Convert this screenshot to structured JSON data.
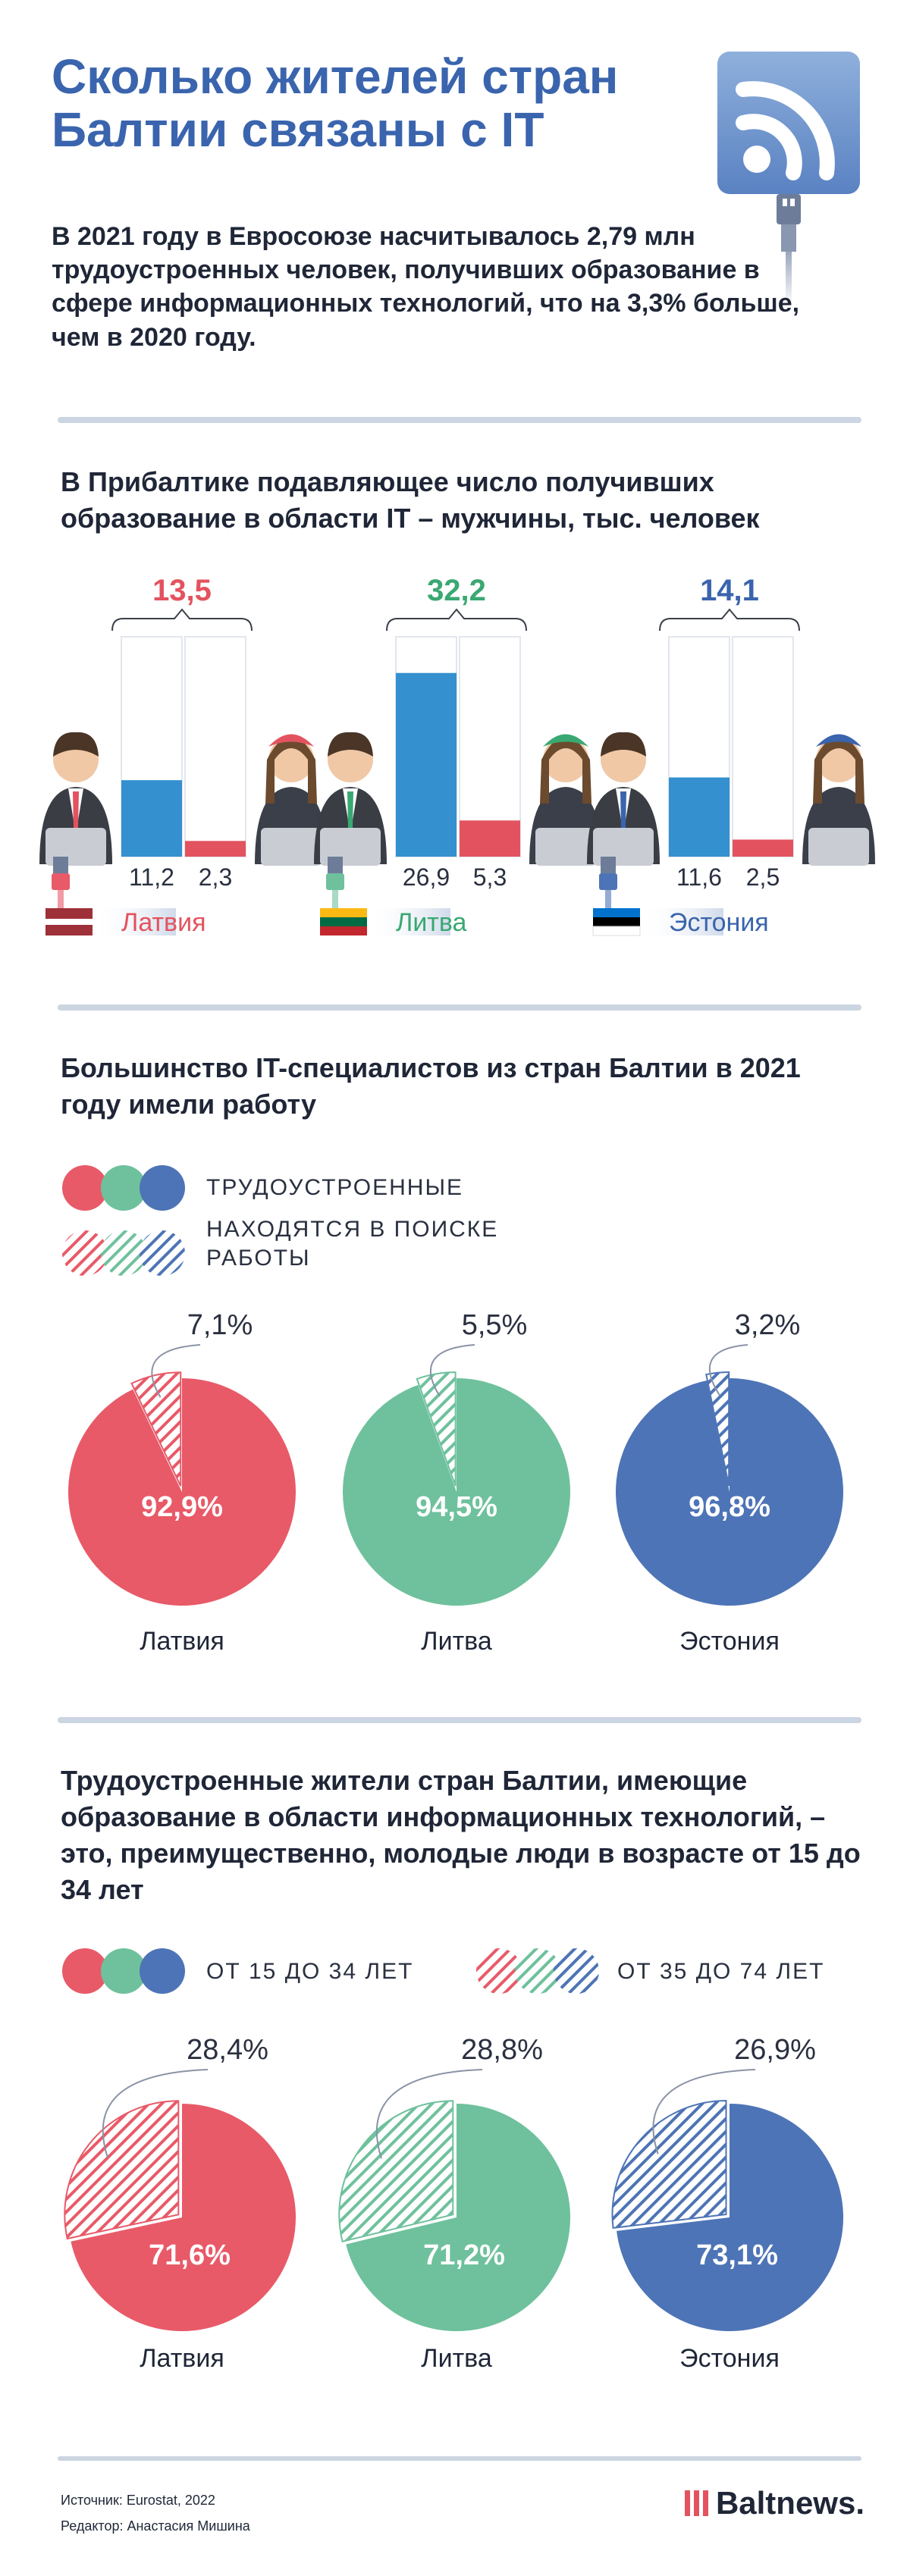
{
  "header": {
    "title": "Сколько жителей стран Балтии связаны с IT",
    "intro": "В 2021 году в Евросоюзе насчитывалось 2,79 млн трудоустроенных человек, получивших образование в сфере информационных технологий, что на 3,3% больше, чем в 2020 году."
  },
  "colors": {
    "latvia": "#e85a68",
    "lithuania": "#6ec19c",
    "estonia": "#4d74b6",
    "male_bar": "#3590cf",
    "female_bar": "#e3535f",
    "total_latvia": "#e3535f",
    "total_lithuania": "#3aa872",
    "total_estonia": "#3a64ad"
  },
  "section1": {
    "title": "В Прибалтике подавляющее число получивших образование в области IT – мужчины, тыс. человек"
  },
  "section2": {
    "title": "Большинство IT-специалистов из стран Балтии в 2021 году имели работу",
    "legend_solid": "ТРУДОУСТРОЕННЫЕ",
    "legend_hatched": "НАХОДЯТСЯ В ПОИСКЕ РАБОТЫ"
  },
  "section3": {
    "title": "Трудоустроенные жители стран Балтии, имеющие образование в области информационных технологий, – это, преимущественно, молодые люди в возрасте от 15 до 34 лет",
    "legend_solid": "ОТ 15 ДО 34 ЛЕТ",
    "legend_hatched": "ОТ 35 ДО 74 ЛЕТ"
  },
  "chart_data": [
    {
      "type": "bar",
      "title": "В Прибалтике подавляющее число получивших образование в области IT – мужчины, тыс. человек",
      "categories": [
        "Латвия",
        "Литва",
        "Эстония"
      ],
      "totals": [
        "13,5",
        "32,2",
        "14,1"
      ],
      "series": [
        {
          "values": [
            11.2,
            26.9,
            11.6
          ],
          "labels": [
            "11,2",
            "26,9",
            "11,6"
          ]
        },
        {
          "values": [
            2.3,
            5.3,
            2.5
          ],
          "labels": [
            "2,3",
            "5,3",
            "2,5"
          ]
        }
      ],
      "ylim": [
        0,
        32.2
      ]
    },
    {
      "type": "pie",
      "title": "Большинство IT-специалистов из стран Балтии в 2021 году имели работу",
      "categories": [
        "Латвия",
        "Литва",
        "Эстония"
      ],
      "series": [
        {
          "name": "ТРУДОУСТРОЕННЫЕ",
          "values": [
            92.9,
            94.5,
            96.8
          ],
          "labels": [
            "92,9%",
            "94,5%",
            "96,8%"
          ]
        },
        {
          "name": "НАХОДЯТСЯ В ПОИСКЕ РАБОТЫ",
          "values": [
            7.1,
            5.5,
            3.2
          ],
          "labels": [
            "7,1%",
            "5,5%",
            "3,2%"
          ]
        }
      ]
    },
    {
      "type": "pie",
      "title": "Трудоустроенные жители стран Балтии, имеющие образование в области информационных технологий, – это, преимущественно, молодые люди в возрасте от 15 до 34 лет",
      "categories": [
        "Латвия",
        "Литва",
        "Эстония"
      ],
      "series": [
        {
          "name": "ОТ 15 ДО 34 ЛЕТ",
          "values": [
            71.6,
            71.2,
            73.1
          ],
          "labels": [
            "71,6%",
            "71,2%",
            "73,1%"
          ]
        },
        {
          "name": "ОТ 35 ДО 74 ЛЕТ",
          "values": [
            28.4,
            28.8,
            26.9
          ],
          "labels": [
            "28,4%",
            "28,8%",
            "26,9%"
          ]
        }
      ]
    }
  ],
  "footer": {
    "source": "Источник: Eurostat, 2022",
    "editor": "Редактор: Анастасия Мишина",
    "brand": "Baltnews."
  }
}
